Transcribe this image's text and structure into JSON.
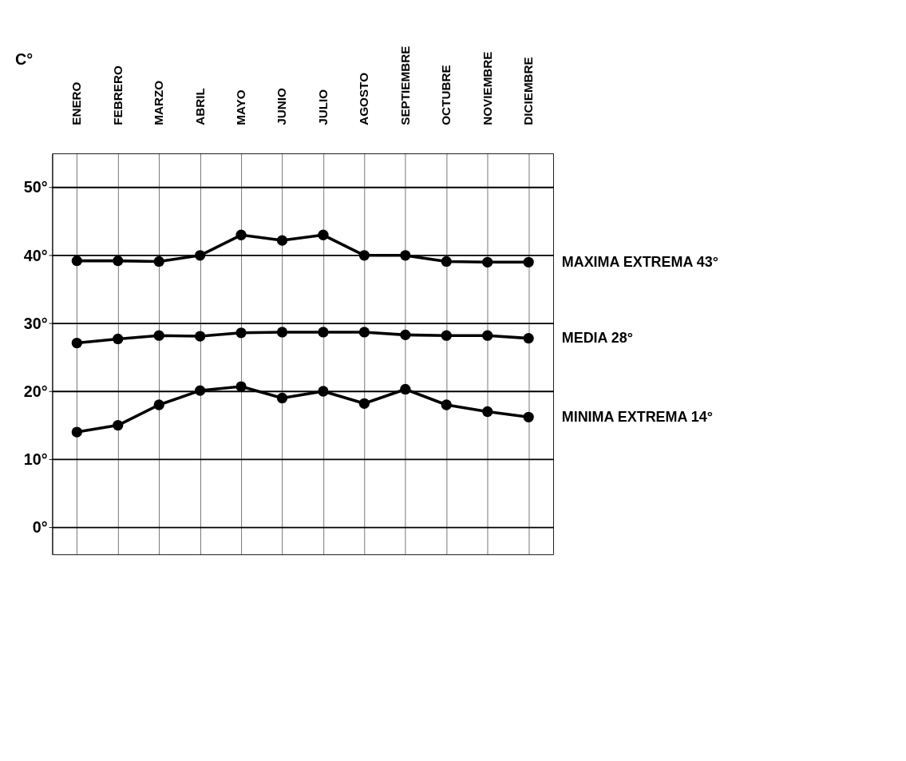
{
  "chart_data": {
    "type": "line",
    "ylabel": "C°",
    "categories": [
      "ENERO",
      "FEBRERO",
      "MARZO",
      "ABRIL",
      "MAYO",
      "JUNIO",
      "JULIO",
      "AGOSTO",
      "SEPTIEMBRE",
      "OCTUBRE",
      "NOVIEMBRE",
      "DICIEMBRE"
    ],
    "series": [
      {
        "name": "MAXIMA EXTREMA 43°",
        "color": "#000000",
        "values": [
          39.2,
          39.2,
          39.1,
          40,
          43,
          42.2,
          43,
          40,
          40,
          39.1,
          39,
          39
        ]
      },
      {
        "name": "MEDIA 28°",
        "color": "#000000",
        "values": [
          27.1,
          27.7,
          28.2,
          28.1,
          28.6,
          28.7,
          28.7,
          28.7,
          28.3,
          28.2,
          28.2,
          27.8
        ]
      },
      {
        "name": "MINIMA EXTREMA 14°",
        "color": "#000000",
        "values": [
          14,
          15,
          18,
          20.1,
          20.7,
          19,
          20,
          18.2,
          20.3,
          18,
          17,
          16.2
        ]
      }
    ],
    "ylim": [
      -4,
      55
    ],
    "yticks": [
      {
        "value": 0,
        "label": "0°"
      },
      {
        "value": 10,
        "label": "10°"
      },
      {
        "value": 20,
        "label": "20°"
      },
      {
        "value": 30,
        "label": "30°"
      },
      {
        "value": 40,
        "label": "40°"
      },
      {
        "value": 50,
        "label": "50°"
      }
    ],
    "grid": true,
    "legend": false,
    "marker": "circle",
    "line_style": "solid"
  }
}
